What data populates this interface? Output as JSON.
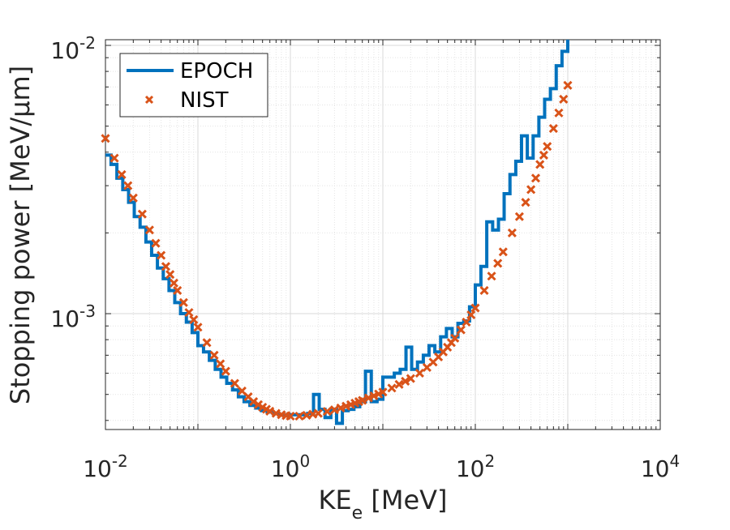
{
  "chart_data": {
    "type": "line",
    "xlabel": "KE",
    "xlabel_sub": "e",
    "xlabel_unit": "[MeV]",
    "ylabel": "Stopping power [MeV/μm]",
    "x_scale": "log",
    "y_scale": "log",
    "xlim": [
      0.01,
      10000
    ],
    "ylim": [
      0.00037,
      0.0105
    ],
    "x_ticks": [
      {
        "value": 0.01,
        "base": "10",
        "exp": "-2"
      },
      {
        "value": 1,
        "base": "10",
        "exp": "0"
      },
      {
        "value": 100,
        "base": "10",
        "exp": "2"
      },
      {
        "value": 10000,
        "base": "10",
        "exp": "4"
      }
    ],
    "y_ticks": [
      {
        "value": 0.001,
        "base": "10",
        "exp": "-3"
      },
      {
        "value": 0.01,
        "base": "10",
        "exp": "-2"
      }
    ],
    "grid": true,
    "legend_position": "top-left",
    "series": [
      {
        "name": "EPOCH",
        "style": "stairs",
        "color": "#0072BD",
        "x": [
          0.01,
          0.0115,
          0.0133,
          0.0154,
          0.0178,
          0.0205,
          0.0237,
          0.0274,
          0.0316,
          0.0365,
          0.0422,
          0.0487,
          0.0562,
          0.0649,
          0.075,
          0.0866,
          0.1,
          0.115,
          0.133,
          0.154,
          0.178,
          0.205,
          0.237,
          0.274,
          0.316,
          0.365,
          0.422,
          0.487,
          0.562,
          0.649,
          0.75,
          0.866,
          1.0,
          1.15,
          1.33,
          1.54,
          1.78,
          2.05,
          2.37,
          2.74,
          3.16,
          3.65,
          4.22,
          4.87,
          5.62,
          6.49,
          7.5,
          8.66,
          10.0,
          11.5,
          13.3,
          15.4,
          17.8,
          20.5,
          23.7,
          27.4,
          31.6,
          36.5,
          42.2,
          48.7,
          56.2,
          64.9,
          75.0,
          86.6,
          100,
          115,
          133,
          154,
          178,
          205,
          237,
          274,
          316,
          365,
          422,
          487,
          562,
          649,
          750,
          866,
          1000
        ],
        "y": [
          0.0039,
          0.0036,
          0.0032,
          0.0029,
          0.0026,
          0.0023,
          0.0021,
          0.00185,
          0.00165,
          0.00148,
          0.00135,
          0.00122,
          0.0011,
          0.001,
          0.00093,
          0.00085,
          0.00076,
          0.00072,
          0.00067,
          0.00062,
          0.00058,
          0.00055,
          0.00052,
          0.00049,
          0.00047,
          0.000455,
          0.000445,
          0.000435,
          0.00043,
          0.000425,
          0.00042,
          0.00042,
          0.00042,
          0.00042,
          0.00042,
          0.000425,
          0.0005,
          0.00044,
          0.00041,
          0.00044,
          0.00039,
          0.000435,
          0.00044,
          0.00045,
          0.00047,
          0.00061,
          0.00047,
          0.00048,
          0.00058,
          0.00058,
          0.0006,
          0.00062,
          0.00075,
          0.00062,
          0.00066,
          0.0007,
          0.00076,
          0.00072,
          0.00082,
          0.00088,
          0.00082,
          0.00092,
          0.00094,
          0.00106,
          0.00128,
          0.0015,
          0.0022,
          0.00205,
          0.00225,
          0.0028,
          0.0033,
          0.0037,
          0.0046,
          0.0038,
          0.0046,
          0.0054,
          0.0063,
          0.0069,
          0.0084,
          0.0095,
          0.0106
        ]
      },
      {
        "name": "NIST",
        "style": "markers-x",
        "color": "#D95319",
        "x": [
          0.01,
          0.0125,
          0.015,
          0.0175,
          0.02,
          0.025,
          0.03,
          0.035,
          0.04,
          0.045,
          0.05,
          0.055,
          0.06,
          0.07,
          0.08,
          0.09,
          0.1,
          0.125,
          0.15,
          0.175,
          0.2,
          0.25,
          0.3,
          0.35,
          0.4,
          0.45,
          0.5,
          0.55,
          0.6,
          0.7,
          0.8,
          0.9,
          1.0,
          1.25,
          1.5,
          1.75,
          2.0,
          2.5,
          3.0,
          3.5,
          4.0,
          4.5,
          5.0,
          5.5,
          6.0,
          7.0,
          8.0,
          9.0,
          10,
          12.5,
          15,
          17.5,
          20,
          25,
          30,
          35,
          40,
          45,
          50,
          55,
          60,
          70,
          80,
          90,
          100,
          125,
          150,
          175,
          200,
          250,
          300,
          350,
          400,
          450,
          500,
          550,
          600,
          700,
          800,
          900,
          1000
        ],
        "y": [
          0.0045,
          0.0038,
          0.0033,
          0.003,
          0.0027,
          0.00235,
          0.00205,
          0.00183,
          0.00165,
          0.0015,
          0.0014,
          0.0013,
          0.00122,
          0.0011,
          0.00101,
          0.00095,
          0.00089,
          0.00078,
          0.0007,
          0.00065,
          0.00061,
          0.00055,
          0.000515,
          0.00049,
          0.00047,
          0.000458,
          0.000448,
          0.00044,
          0.000433,
          0.000425,
          0.00042,
          0.000417,
          0.000415,
          0.000415,
          0.000418,
          0.000422,
          0.000425,
          0.000432,
          0.000438,
          0.000445,
          0.000452,
          0.000458,
          0.000464,
          0.00047,
          0.000475,
          0.000485,
          0.000494,
          0.000502,
          0.00051,
          0.000528,
          0.000545,
          0.00056,
          0.000573,
          0.0006,
          0.00063,
          0.00066,
          0.00069,
          0.00072,
          0.00075,
          0.00078,
          0.00081,
          0.00087,
          0.00093,
          0.00099,
          0.00105,
          0.00122,
          0.00138,
          0.00154,
          0.0017,
          0.002,
          0.0023,
          0.0026,
          0.0029,
          0.0032,
          0.0036,
          0.0039,
          0.0042,
          0.0049,
          0.0056,
          0.0063,
          0.0071
        ]
      }
    ]
  }
}
